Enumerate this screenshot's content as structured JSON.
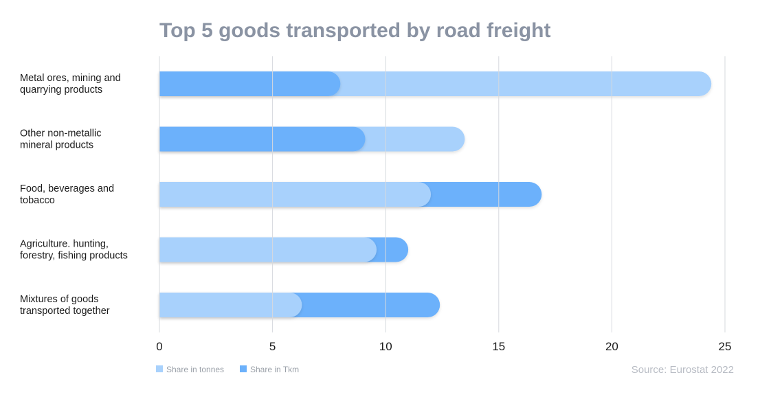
{
  "chart_data": {
    "type": "bar",
    "orientation": "horizontal",
    "title": "Top 5 goods transported by road freight",
    "categories": [
      [
        "Metal ores, mining and",
        "quarrying products"
      ],
      [
        "Other non-metallic",
        "mineral products"
      ],
      [
        "Food, beverages and",
        "tobacco"
      ],
      [
        "Agriculture. hunting,",
        "forestry, fishing products"
      ],
      [
        "Mixtures of goods",
        "transported together"
      ]
    ],
    "series": [
      {
        "name": "Share in tonnes",
        "color": "#a8d1fc",
        "values": [
          24.4,
          13.5,
          12.0,
          9.6,
          6.3
        ]
      },
      {
        "name": "Share in Tkm",
        "color": "#6cb1fb",
        "values": [
          8.0,
          9.1,
          16.9,
          11.0,
          12.4
        ]
      }
    ],
    "xlim": [
      0,
      25
    ],
    "xticks": [
      "0",
      "5",
      "10",
      "15",
      "20",
      "25"
    ],
    "grid": true,
    "legend": "bottom-left",
    "source": "Source: Eurostat 2022"
  }
}
